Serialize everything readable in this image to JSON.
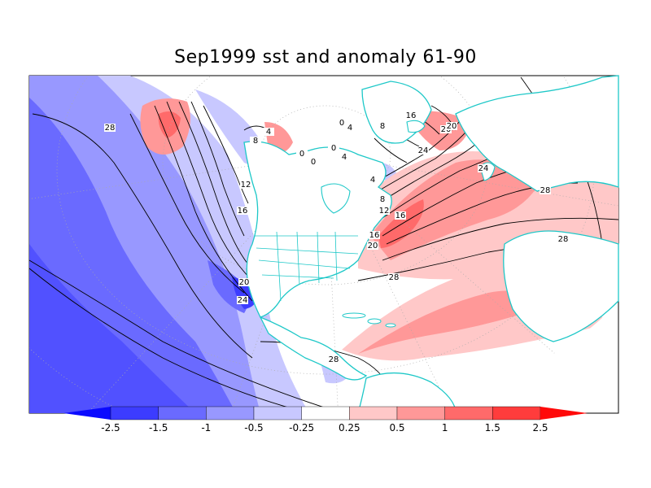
{
  "title": "Sep1999 sst and anomaly 61-90",
  "colorbar": {
    "bins": [
      {
        "color": "#0a0aff"
      },
      {
        "color": "#3c3cff"
      },
      {
        "color": "#6a6aff"
      },
      {
        "color": "#9898ff"
      },
      {
        "color": "#c8c8ff"
      },
      {
        "color": "#ffffff"
      },
      {
        "color": "#ffc8c8"
      },
      {
        "color": "#ff9898"
      },
      {
        "color": "#ff6a6a"
      },
      {
        "color": "#ff3c3c"
      },
      {
        "color": "#ff0a0a"
      }
    ],
    "labels": [
      "-2.5",
      "-1.5",
      "-1",
      "-0.5",
      "-0.25",
      "0.25",
      "0.5",
      "1",
      "1.5",
      "2.5"
    ]
  },
  "contour_labels": [
    "28",
    "4",
    "8",
    "0",
    "0",
    "0",
    "4",
    "12",
    "16",
    "20",
    "24",
    "0",
    "4",
    "8",
    "4",
    "12",
    "16",
    "16",
    "20",
    "8",
    "16",
    "20",
    "24",
    "28",
    "28",
    "28",
    "28",
    "20",
    "24"
  ],
  "colors": {
    "coastline": "#1ec8c8",
    "contour": "#000000",
    "grid": "#aaaaaa"
  }
}
